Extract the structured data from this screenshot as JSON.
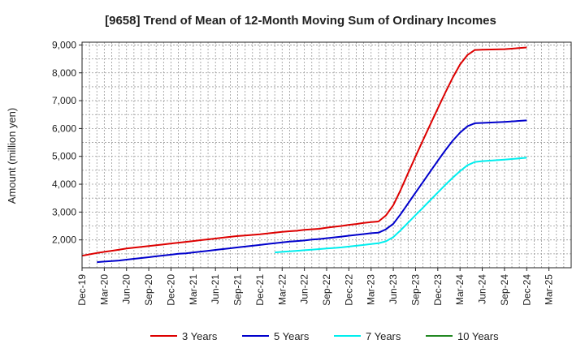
{
  "chart_data": {
    "type": "line",
    "title": "[9658]  Trend of Mean of 12-Month Moving Sum of Ordinary Incomes",
    "xlabel": "",
    "ylabel": "Amount (million yen)",
    "ylim": [
      1000,
      9100
    ],
    "yticks": [
      2000,
      3000,
      4000,
      5000,
      6000,
      7000,
      8000,
      9000
    ],
    "ytick_labels": [
      "2,000",
      "3,000",
      "4,000",
      "5,000",
      "6,000",
      "7,000",
      "8,000",
      "9,000"
    ],
    "x_index_range": [
      0,
      22
    ],
    "x_tick_labels": [
      "Dec-19",
      "Mar-20",
      "Jun-20",
      "Sep-20",
      "Dec-20",
      "Mar-21",
      "Jun-21",
      "Sep-21",
      "Dec-21",
      "Mar-22",
      "Jun-22",
      "Sep-22",
      "Dec-22",
      "Mar-23",
      "Jun-23",
      "Sep-23",
      "Dec-23",
      "Mar-24",
      "Jun-24",
      "Sep-24",
      "Dec-24",
      "Mar-25"
    ],
    "grid": true,
    "legend_position": "bottom",
    "series": [
      {
        "name": "3 Years",
        "color": "#dd0000",
        "points": [
          [
            0,
            1430
          ],
          [
            0.333,
            1480
          ],
          [
            0.667,
            1530
          ],
          [
            1,
            1570
          ],
          [
            1.333,
            1610
          ],
          [
            1.667,
            1650
          ],
          [
            2,
            1690
          ],
          [
            2.333,
            1720
          ],
          [
            2.667,
            1750
          ],
          [
            3,
            1780
          ],
          [
            3.333,
            1810
          ],
          [
            3.667,
            1840
          ],
          [
            4,
            1870
          ],
          [
            4.333,
            1900
          ],
          [
            4.667,
            1930
          ],
          [
            5,
            1960
          ],
          [
            5.333,
            1990
          ],
          [
            5.667,
            2020
          ],
          [
            6,
            2050
          ],
          [
            6.333,
            2080
          ],
          [
            6.667,
            2110
          ],
          [
            7,
            2140
          ],
          [
            7.333,
            2160
          ],
          [
            7.667,
            2180
          ],
          [
            8,
            2200
          ],
          [
            8.333,
            2230
          ],
          [
            8.667,
            2260
          ],
          [
            9,
            2290
          ],
          [
            9.333,
            2310
          ],
          [
            9.667,
            2330
          ],
          [
            10,
            2360
          ],
          [
            10.333,
            2380
          ],
          [
            10.667,
            2400
          ],
          [
            11,
            2440
          ],
          [
            11.333,
            2470
          ],
          [
            11.667,
            2500
          ],
          [
            12,
            2540
          ],
          [
            12.333,
            2570
          ],
          [
            12.667,
            2610
          ],
          [
            13,
            2640
          ],
          [
            13.333,
            2660
          ],
          [
            13.667,
            2880
          ],
          [
            14,
            3250
          ],
          [
            14.333,
            3800
          ],
          [
            14.667,
            4400
          ],
          [
            15,
            5000
          ],
          [
            15.333,
            5580
          ],
          [
            15.667,
            6150
          ],
          [
            16,
            6720
          ],
          [
            16.333,
            7280
          ],
          [
            16.667,
            7820
          ],
          [
            17,
            8300
          ],
          [
            17.333,
            8640
          ],
          [
            17.667,
            8820
          ],
          [
            18,
            8830
          ],
          [
            19,
            8850
          ],
          [
            20,
            8910
          ]
        ]
      },
      {
        "name": "5 Years",
        "color": "#0000cc",
        "points": [
          [
            0.667,
            1200
          ],
          [
            1,
            1220
          ],
          [
            1.333,
            1240
          ],
          [
            1.667,
            1260
          ],
          [
            2,
            1290
          ],
          [
            2.333,
            1320
          ],
          [
            2.667,
            1350
          ],
          [
            3,
            1380
          ],
          [
            3.333,
            1410
          ],
          [
            3.667,
            1440
          ],
          [
            4,
            1470
          ],
          [
            4.333,
            1500
          ],
          [
            4.667,
            1520
          ],
          [
            5,
            1550
          ],
          [
            5.333,
            1580
          ],
          [
            5.667,
            1610
          ],
          [
            6,
            1640
          ],
          [
            6.333,
            1670
          ],
          [
            6.667,
            1700
          ],
          [
            7,
            1730
          ],
          [
            7.333,
            1760
          ],
          [
            7.667,
            1790
          ],
          [
            8,
            1820
          ],
          [
            8.333,
            1850
          ],
          [
            8.667,
            1880
          ],
          [
            9,
            1910
          ],
          [
            9.333,
            1940
          ],
          [
            9.667,
            1960
          ],
          [
            10,
            1980
          ],
          [
            10.333,
            2010
          ],
          [
            10.667,
            2030
          ],
          [
            11,
            2060
          ],
          [
            11.333,
            2090
          ],
          [
            11.667,
            2120
          ],
          [
            12,
            2150
          ],
          [
            12.333,
            2180
          ],
          [
            12.667,
            2210
          ],
          [
            13,
            2240
          ],
          [
            13.333,
            2260
          ],
          [
            13.667,
            2380
          ],
          [
            14,
            2580
          ],
          [
            14.333,
            2930
          ],
          [
            14.667,
            3310
          ],
          [
            15,
            3700
          ],
          [
            15.333,
            4080
          ],
          [
            15.667,
            4460
          ],
          [
            16,
            4840
          ],
          [
            16.333,
            5210
          ],
          [
            16.667,
            5560
          ],
          [
            17,
            5850
          ],
          [
            17.333,
            6080
          ],
          [
            17.667,
            6190
          ],
          [
            18,
            6200
          ],
          [
            19,
            6240
          ],
          [
            20,
            6290
          ]
        ]
      },
      {
        "name": "7 Years",
        "color": "#00eeee",
        "points": [
          [
            8.667,
            1550
          ],
          [
            9,
            1570
          ],
          [
            9.333,
            1590
          ],
          [
            9.667,
            1610
          ],
          [
            10,
            1630
          ],
          [
            10.333,
            1650
          ],
          [
            10.667,
            1670
          ],
          [
            11,
            1690
          ],
          [
            11.333,
            1710
          ],
          [
            11.667,
            1730
          ],
          [
            12,
            1760
          ],
          [
            12.333,
            1790
          ],
          [
            12.667,
            1820
          ],
          [
            13,
            1850
          ],
          [
            13.333,
            1880
          ],
          [
            13.667,
            1950
          ],
          [
            14,
            2100
          ],
          [
            14.333,
            2350
          ],
          [
            14.667,
            2620
          ],
          [
            15,
            2890
          ],
          [
            15.333,
            3160
          ],
          [
            15.667,
            3430
          ],
          [
            16,
            3700
          ],
          [
            16.333,
            3970
          ],
          [
            16.667,
            4230
          ],
          [
            17,
            4470
          ],
          [
            17.333,
            4680
          ],
          [
            17.667,
            4800
          ],
          [
            18,
            4830
          ],
          [
            19,
            4880
          ],
          [
            20,
            4950
          ]
        ]
      },
      {
        "name": "10 Years",
        "color": "#228822",
        "points": []
      }
    ]
  }
}
